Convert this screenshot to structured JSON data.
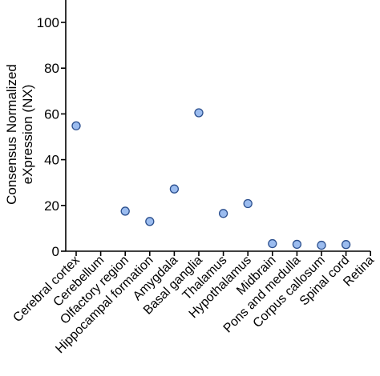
{
  "chart_data": {
    "type": "scatter",
    "title": "",
    "xlabel": "",
    "ylabel_lines": [
      "Consensus Normalized",
      "eXpression (NX)"
    ],
    "categories": [
      "Cerebral cortex",
      "Cerebellum",
      "Olfactory region",
      "Hippocampal formation",
      "Amygdala",
      "Basal ganglia",
      "Thalamus",
      "Hypothalamus",
      "Midbrain",
      "Pons and medulla",
      "Corpus callosum",
      "Spinal cord",
      "Retina"
    ],
    "values": [
      54.8,
      null,
      17.5,
      13.0,
      27.2,
      60.5,
      16.5,
      20.8,
      3.3,
      3.0,
      2.6,
      2.9,
      null
    ],
    "ylim": [
      0,
      100
    ],
    "yticks": [
      0,
      20,
      40,
      60,
      80,
      100
    ],
    "grid": false,
    "legend": "none",
    "marker_color": "#9bbcef",
    "marker_edge_color": "#2b4f8e"
  }
}
